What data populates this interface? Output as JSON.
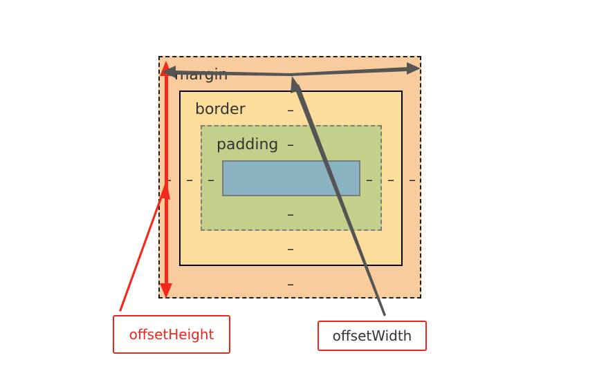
{
  "boxes": {
    "margin": "margin",
    "border": "border",
    "padding": "padding"
  },
  "dash_glyph": "–",
  "callouts": {
    "offset_height": "offsetHeight",
    "offset_width": "offsetWidth"
  },
  "colors": {
    "margin_fill": "#f9cc9d",
    "border_fill": "#fddd9b",
    "padding_fill": "#c4cf8b",
    "content_fill": "#8ab3c1",
    "height_arrow": "#f2291c",
    "width_arrow": "#555555",
    "callout_border": "#e42a20"
  }
}
